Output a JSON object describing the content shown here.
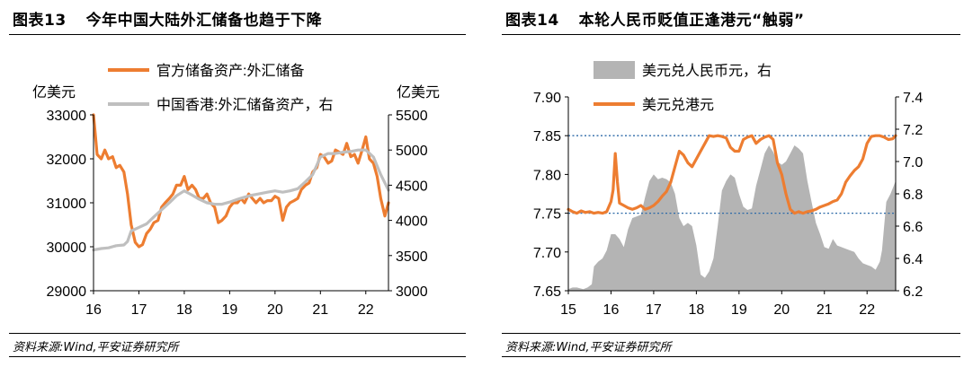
{
  "charts": [
    {
      "figure_number": "图表13",
      "title": "今年中国大陆外汇储备也趋于下降",
      "source": "资料来源:Wind,平安证券研究所"
    },
    {
      "figure_number": "图表14",
      "title": "本轮人民币贬值正逢港元“触弱”",
      "source": "资料来源:Wind,平安证券研究所"
    }
  ],
  "colors": {
    "orange": "#ed7d31",
    "gray": "#bfbfbf",
    "area_gray": "#b4b4b4",
    "ref_blue": "#2e6aa8"
  },
  "chart_data": [
    {
      "type": "line",
      "xlabel": "",
      "x_ticks": [
        "16",
        "17",
        "18",
        "19",
        "20",
        "21",
        "22"
      ],
      "xlim": [
        2016.0,
        2022.5
      ],
      "y_left": {
        "label": "亿美元",
        "lim": [
          29000,
          33000
        ],
        "ticks": [
          "29000",
          "30000",
          "31000",
          "32000",
          "33000"
        ]
      },
      "y_right": {
        "label": "亿美元",
        "lim": [
          3000,
          5500
        ],
        "ticks": [
          "3000",
          "3500",
          "4000",
          "4500",
          "5000",
          "5500"
        ]
      },
      "legend": [
        "官方储备资产:外汇储备",
        "中国香港:外汇储备资产，右"
      ],
      "series": [
        {
          "name": "官方储备资产:外汇储备",
          "axis": "left",
          "color": "#ed7d31",
          "x": [
            2016.0,
            2016.08,
            2016.17,
            2016.25,
            2016.33,
            2016.42,
            2016.5,
            2016.58,
            2016.67,
            2016.75,
            2016.83,
            2016.92,
            2017.0,
            2017.08,
            2017.17,
            2017.25,
            2017.33,
            2017.42,
            2017.5,
            2017.58,
            2017.67,
            2017.75,
            2017.83,
            2017.92,
            2018.0,
            2018.08,
            2018.17,
            2018.25,
            2018.33,
            2018.42,
            2018.5,
            2018.58,
            2018.67,
            2018.75,
            2018.83,
            2018.92,
            2019.0,
            2019.08,
            2019.17,
            2019.25,
            2019.33,
            2019.42,
            2019.5,
            2019.58,
            2019.67,
            2019.75,
            2019.83,
            2019.92,
            2020.0,
            2020.08,
            2020.17,
            2020.25,
            2020.33,
            2020.42,
            2020.5,
            2020.58,
            2020.67,
            2020.75,
            2020.83,
            2020.92,
            2021.0,
            2021.08,
            2021.17,
            2021.25,
            2021.33,
            2021.42,
            2021.5,
            2021.58,
            2021.67,
            2021.75,
            2021.83,
            2021.92,
            2022.0,
            2022.08,
            2022.17,
            2022.25,
            2022.33,
            2022.42,
            2022.5
          ],
          "values": [
            33000,
            32100,
            32000,
            32200,
            32000,
            32050,
            31800,
            31850,
            31700,
            31200,
            30500,
            30100,
            30000,
            30050,
            30300,
            30400,
            30550,
            30600,
            30900,
            31000,
            31100,
            31200,
            31400,
            31400,
            31600,
            31300,
            31400,
            31300,
            31100,
            31100,
            31200,
            31000,
            30900,
            30550,
            30600,
            30700,
            30900,
            31000,
            31000,
            31100,
            31000,
            31200,
            31100,
            31000,
            31100,
            31000,
            31050,
            31050,
            31150,
            31100,
            30600,
            30900,
            31000,
            31050,
            31100,
            31300,
            31400,
            31450,
            31700,
            31800,
            32100,
            32050,
            31900,
            31950,
            32200,
            32150,
            32100,
            32350,
            32050,
            32100,
            31900,
            32200,
            32500,
            32000,
            31900,
            31600,
            31100,
            30700,
            31000
          ]
        },
        {
          "name": "中国香港:外汇储备资产，右",
          "axis": "right",
          "color": "#bfbfbf",
          "x": [
            2016.0,
            2016.17,
            2016.33,
            2016.5,
            2016.67,
            2016.75,
            2016.83,
            2017.0,
            2017.17,
            2017.33,
            2017.5,
            2017.67,
            2017.83,
            2018.0,
            2018.17,
            2018.33,
            2018.5,
            2018.67,
            2018.83,
            2019.0,
            2019.17,
            2019.33,
            2019.5,
            2019.67,
            2019.83,
            2020.0,
            2020.17,
            2020.33,
            2020.5,
            2020.67,
            2020.83,
            2021.0,
            2021.17,
            2021.33,
            2021.5,
            2021.67,
            2021.83,
            2022.0,
            2022.17,
            2022.33,
            2022.5
          ],
          "values": [
            3580,
            3600,
            3610,
            3640,
            3650,
            3700,
            3850,
            3900,
            3950,
            4050,
            4150,
            4250,
            4350,
            4420,
            4360,
            4300,
            4250,
            4230,
            4230,
            4260,
            4300,
            4330,
            4360,
            4380,
            4400,
            4420,
            4400,
            4420,
            4450,
            4550,
            4650,
            4900,
            4950,
            4950,
            4970,
            4980,
            5000,
            5000,
            4900,
            4650,
            4430
          ]
        }
      ]
    },
    {
      "type": "line",
      "x_ticks": [
        "15",
        "16",
        "17",
        "18",
        "19",
        "20",
        "21",
        "22"
      ],
      "xlim": [
        2015.0,
        2022.67
      ],
      "y_left": {
        "label": "",
        "lim": [
          7.65,
          7.9
        ],
        "ticks": [
          "7.65",
          "7.70",
          "7.75",
          "7.80",
          "7.85",
          "7.90"
        ]
      },
      "y_right": {
        "label": "",
        "lim": [
          6.2,
          7.4
        ],
        "ticks": [
          "6.2",
          "6.4",
          "6.6",
          "6.8",
          "7.0",
          "7.2",
          "7.4"
        ]
      },
      "legend": [
        "美元兑人民币元，右",
        "美元兑港元"
      ],
      "reference_lines": [
        7.85,
        7.75
      ],
      "series": [
        {
          "name": "美元兑人民币元，右",
          "axis": "right",
          "type": "area",
          "color": "#b4b4b4",
          "x": [
            2015.0,
            2015.1,
            2015.2,
            2015.35,
            2015.45,
            2015.55,
            2015.6,
            2015.7,
            2015.8,
            2015.9,
            2016.0,
            2016.1,
            2016.2,
            2016.3,
            2016.4,
            2016.5,
            2016.6,
            2016.7,
            2016.8,
            2016.9,
            2017.0,
            2017.1,
            2017.2,
            2017.3,
            2017.4,
            2017.5,
            2017.6,
            2017.7,
            2017.8,
            2017.9,
            2018.0,
            2018.1,
            2018.2,
            2018.3,
            2018.4,
            2018.5,
            2018.6,
            2018.7,
            2018.8,
            2018.9,
            2019.0,
            2019.1,
            2019.2,
            2019.3,
            2019.4,
            2019.5,
            2019.6,
            2019.7,
            2019.8,
            2019.9,
            2020.0,
            2020.1,
            2020.2,
            2020.3,
            2020.4,
            2020.5,
            2020.6,
            2020.7,
            2020.8,
            2020.9,
            2021.0,
            2021.1,
            2021.2,
            2021.3,
            2021.4,
            2021.5,
            2021.6,
            2021.7,
            2021.8,
            2021.9,
            2022.0,
            2022.1,
            2022.2,
            2022.3,
            2022.35,
            2022.45,
            2022.55,
            2022.67
          ],
          "values": [
            6.21,
            6.22,
            6.22,
            6.21,
            6.22,
            6.24,
            6.35,
            6.38,
            6.4,
            6.45,
            6.55,
            6.55,
            6.52,
            6.47,
            6.58,
            6.65,
            6.66,
            6.67,
            6.78,
            6.88,
            6.92,
            6.89,
            6.9,
            6.89,
            6.87,
            6.8,
            6.65,
            6.6,
            6.62,
            6.6,
            6.48,
            6.3,
            6.28,
            6.32,
            6.4,
            6.6,
            6.82,
            6.88,
            6.92,
            6.9,
            6.8,
            6.72,
            6.7,
            6.71,
            6.85,
            6.95,
            7.05,
            7.1,
            7.06,
            7.0,
            6.98,
            7.0,
            7.05,
            7.1,
            7.08,
            7.05,
            6.88,
            6.75,
            6.62,
            6.55,
            6.47,
            6.46,
            6.52,
            6.48,
            6.47,
            6.46,
            6.45,
            6.44,
            6.4,
            6.37,
            6.36,
            6.35,
            6.33,
            6.38,
            6.45,
            6.75,
            6.8,
            6.88
          ]
        },
        {
          "name": "美元兑港元",
          "axis": "left",
          "type": "line",
          "color": "#ed7d31",
          "x": [
            2015.0,
            2015.1,
            2015.2,
            2015.3,
            2015.4,
            2015.5,
            2015.6,
            2015.7,
            2015.8,
            2015.9,
            2016.0,
            2016.05,
            2016.1,
            2016.15,
            2016.2,
            2016.3,
            2016.4,
            2016.5,
            2016.6,
            2016.7,
            2016.8,
            2016.9,
            2017.0,
            2017.1,
            2017.2,
            2017.3,
            2017.4,
            2017.5,
            2017.6,
            2017.7,
            2017.8,
            2017.9,
            2018.0,
            2018.1,
            2018.2,
            2018.3,
            2018.4,
            2018.5,
            2018.6,
            2018.7,
            2018.8,
            2018.9,
            2019.0,
            2019.1,
            2019.2,
            2019.3,
            2019.4,
            2019.5,
            2019.6,
            2019.7,
            2019.8,
            2019.9,
            2020.0,
            2020.1,
            2020.2,
            2020.3,
            2020.4,
            2020.5,
            2020.6,
            2020.7,
            2020.8,
            2020.9,
            2021.0,
            2021.1,
            2021.2,
            2021.3,
            2021.4,
            2021.5,
            2021.6,
            2021.7,
            2021.8,
            2021.9,
            2022.0,
            2022.1,
            2022.2,
            2022.3,
            2022.4,
            2022.5,
            2022.6,
            2022.67
          ],
          "values": [
            7.755,
            7.752,
            7.75,
            7.753,
            7.751,
            7.752,
            7.75,
            7.751,
            7.75,
            7.752,
            7.765,
            7.78,
            7.827,
            7.79,
            7.763,
            7.76,
            7.757,
            7.755,
            7.757,
            7.76,
            7.755,
            7.757,
            7.76,
            7.765,
            7.772,
            7.778,
            7.79,
            7.81,
            7.83,
            7.825,
            7.815,
            7.81,
            7.82,
            7.83,
            7.84,
            7.85,
            7.849,
            7.85,
            7.849,
            7.847,
            7.835,
            7.83,
            7.83,
            7.845,
            7.848,
            7.85,
            7.84,
            7.845,
            7.848,
            7.85,
            7.845,
            7.815,
            7.8,
            7.775,
            7.755,
            7.75,
            7.752,
            7.75,
            7.752,
            7.753,
            7.755,
            7.758,
            7.76,
            7.762,
            7.765,
            7.767,
            7.775,
            7.79,
            7.798,
            7.805,
            7.81,
            7.82,
            7.84,
            7.849,
            7.85,
            7.85,
            7.848,
            7.845,
            7.846,
            7.85
          ]
        }
      ]
    }
  ]
}
